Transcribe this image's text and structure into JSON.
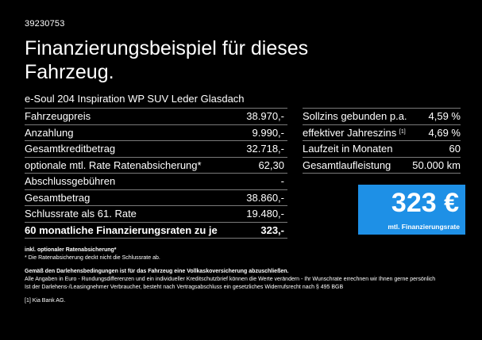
{
  "reference": "39230753",
  "title": "Finanzierungsbeispiel für dieses Fahrzeug.",
  "model": "e-Soul 204 Inspiration WP SUV Leder Glasdach",
  "left_rows": [
    {
      "label": "Fahrzeugpreis",
      "value": "38.970,-"
    },
    {
      "label": "Anzahlung",
      "value": "9.990,-"
    },
    {
      "label": "Gesamtkreditbetrag",
      "value": "32.718,-"
    },
    {
      "label": "optionale mtl. Rate Ratenabsicherung*",
      "value": "62,30"
    },
    {
      "label": "Abschlussgebühren",
      "value": "-"
    },
    {
      "label": "Gesamtbetrag",
      "value": "38.860,-"
    },
    {
      "label": "Schlussrate als 61. Rate",
      "value": "19.480,-"
    },
    {
      "label": "60 monatliche Finanzierungsraten zu je",
      "value": "323,-"
    }
  ],
  "right_rows": [
    {
      "label": "Sollzins gebunden p.a.",
      "value": "4,59 %"
    },
    {
      "label": "effektiver Jahreszins",
      "sup": "[1]",
      "value": "4,69 %"
    },
    {
      "label": "Laufzeit in Monaten",
      "value": "60"
    },
    {
      "label": "Gesamtlaufleistung",
      "value": "50.000 km"
    }
  ],
  "rate": {
    "value": "323 €",
    "label": "mtl. Finanzierungsrate",
    "color": "#1e90e6"
  },
  "notes": {
    "n1": "inkl. optionaler Ratenabsicherung*",
    "n2": "* Die Ratenabsicherung deckt nicht die Schlussrate ab.",
    "n3": "Gemäß den Darlehensbedingungen ist für das Fahrzeug eine Vollkaskoversicherung abzuschließen.",
    "n4": "Alle Angaben in Euro - Rundungsdifferenzen und ein individueller Kreditschutzbrief können die Werte verändern - Ihr Wunschrate errechnen wir Ihnen gerne persönlich",
    "n5": "Ist der Darlehens-/Leasingnehmer Verbraucher, besteht nach Vertragsabschluss ein gesetzliches Widerrufsrecht nach § 495 BGB",
    "n6": "[1]  Kia Bank AG."
  }
}
